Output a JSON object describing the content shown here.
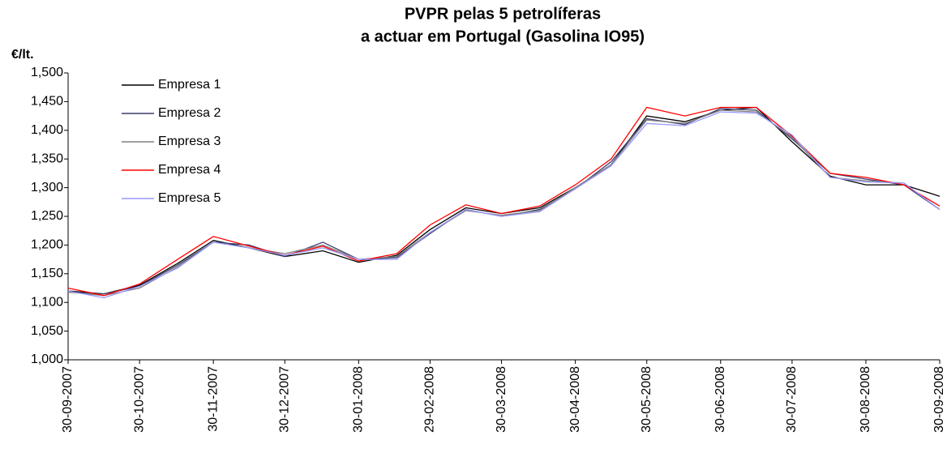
{
  "chart_data": {
    "type": "line",
    "title": [
      "PVPR pelas 5 petrolíferas",
      "a actuar em Portugal (Gasolina IO95)"
    ],
    "y_label": "€/lt.",
    "x": [
      "30-09-2007",
      "15-10-2007",
      "30-10-2007",
      "15-11-2007",
      "30-11-2007",
      "15-12-2007",
      "30-12-2007",
      "15-01-2008",
      "30-01-2008",
      "15-02-2008",
      "29-02-2008",
      "15-03-2008",
      "30-03-2008",
      "15-04-2008",
      "30-04-2008",
      "15-05-2008",
      "30-05-2008",
      "15-06-2008",
      "30-06-2008",
      "15-07-2008",
      "30-07-2008",
      "15-08-2008",
      "30-08-2008",
      "15-09-2008",
      "30-09-2008"
    ],
    "xlim": [
      "30-09-2007",
      "30-09-2008"
    ],
    "xticks": [
      "30-09-2007",
      "30-10-2007",
      "30-11-2007",
      "30-12-2007",
      "30-01-2008",
      "29-02-2008",
      "30-03-2008",
      "30-04-2008",
      "30-05-2008",
      "30-06-2008",
      "30-07-2008",
      "30-08-2008",
      "30-09-2008"
    ],
    "ylim": [
      1.0,
      1.5
    ],
    "yticks": [
      {
        "value": 1.0,
        "label": "1,000"
      },
      {
        "value": 1.05,
        "label": "1,050"
      },
      {
        "value": 1.1,
        "label": "1,100"
      },
      {
        "value": 1.15,
        "label": "1,150"
      },
      {
        "value": 1.2,
        "label": "1,200"
      },
      {
        "value": 1.25,
        "label": "1,250"
      },
      {
        "value": 1.3,
        "label": "1,300"
      },
      {
        "value": 1.35,
        "label": "1,350"
      },
      {
        "value": 1.4,
        "label": "1,400"
      },
      {
        "value": 1.45,
        "label": "1,450"
      },
      {
        "value": 1.5,
        "label": "1,500"
      }
    ],
    "legend": "upper left",
    "series": [
      {
        "name": "Empresa 1",
        "color": "#000000",
        "values": [
          1.12,
          1.115,
          1.13,
          1.168,
          1.208,
          1.195,
          1.18,
          1.19,
          1.17,
          1.182,
          1.227,
          1.265,
          1.255,
          1.265,
          1.3,
          1.34,
          1.425,
          1.415,
          1.435,
          1.44,
          1.38,
          1.32,
          1.305,
          1.305,
          1.285
        ]
      },
      {
        "name": "Empresa 2",
        "color": "#3c3c6e",
        "values": [
          1.118,
          1.115,
          1.128,
          1.165,
          1.205,
          1.2,
          1.18,
          1.205,
          1.175,
          1.178,
          1.22,
          1.262,
          1.25,
          1.262,
          1.298,
          1.345,
          1.42,
          1.41,
          1.438,
          1.435,
          1.385,
          1.325,
          1.315,
          1.305,
          1.262
        ]
      },
      {
        "name": "Empresa 3",
        "color": "#808080",
        "values": [
          1.118,
          1.112,
          1.125,
          1.162,
          1.205,
          1.195,
          1.185,
          1.2,
          1.175,
          1.18,
          1.222,
          1.26,
          1.252,
          1.26,
          1.3,
          1.34,
          1.418,
          1.412,
          1.435,
          1.432,
          1.388,
          1.318,
          1.312,
          1.308,
          1.262
        ]
      },
      {
        "name": "Empresa 4",
        "color": "#ff0000",
        "values": [
          1.125,
          1.112,
          1.132,
          1.175,
          1.215,
          1.198,
          1.182,
          1.198,
          1.172,
          1.185,
          1.235,
          1.27,
          1.255,
          1.268,
          1.305,
          1.35,
          1.44,
          1.425,
          1.44,
          1.44,
          1.39,
          1.325,
          1.318,
          1.305,
          1.268
        ]
      },
      {
        "name": "Empresa 5",
        "color": "#9999ff",
        "values": [
          1.12,
          1.108,
          1.128,
          1.16,
          1.205,
          1.195,
          1.182,
          1.195,
          1.175,
          1.175,
          1.222,
          1.262,
          1.25,
          1.258,
          1.298,
          1.338,
          1.412,
          1.408,
          1.432,
          1.43,
          1.392,
          1.318,
          1.31,
          1.308,
          1.262
        ]
      }
    ]
  }
}
